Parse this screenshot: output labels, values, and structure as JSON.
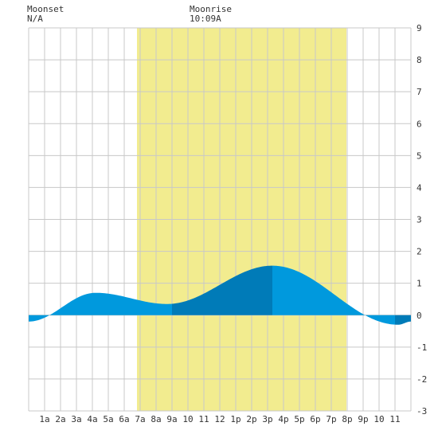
{
  "header": {
    "moonset_label": "Moonset",
    "moonset_value": "N/A",
    "moonrise_label": "Moonrise",
    "moonrise_value": "10:09A"
  },
  "colors": {
    "daylight": "#f2ec8f",
    "tide_light": "#0099dd",
    "tide_dark": "#007bb8",
    "grid": "#c8c8c8",
    "background": "#ffffff"
  },
  "chart_data": {
    "type": "area",
    "x_range": [
      0,
      24
    ],
    "ylim": [
      -3,
      9
    ],
    "grid": true,
    "x_tick_labels": [
      "1a",
      "2a",
      "3a",
      "4a",
      "5a",
      "6a",
      "7a",
      "8a",
      "9a",
      "10",
      "11",
      "12",
      "1p",
      "2p",
      "3p",
      "4p",
      "5p",
      "6p",
      "7p",
      "8p",
      "9p",
      "10",
      "11"
    ],
    "y_tick_labels": [
      "-3",
      "-2",
      "-1",
      "0",
      "1",
      "2",
      "3",
      "4",
      "5",
      "6",
      "7",
      "8",
      "9"
    ],
    "daylight": {
      "start_hour": 6.8,
      "end_hour": 19.95
    },
    "tide_extremes": [
      {
        "hour": 0.0,
        "height": -0.2
      },
      {
        "hour": 4.2,
        "height": 0.7
      },
      {
        "hour": 8.7,
        "height": 0.35
      },
      {
        "hour": 15.3,
        "height": 1.55
      },
      {
        "hour": 23.2,
        "height": -0.3
      },
      {
        "hour": 24.0,
        "height": -0.2
      }
    ],
    "tide_segments": [
      {
        "start_hour": 0.0,
        "end_hour": 4.3,
        "shade": "light"
      },
      {
        "start_hour": 4.3,
        "end_hour": 9.0,
        "shade": "light"
      },
      {
        "start_hour": 9.0,
        "end_hour": 15.3,
        "shade": "dark"
      },
      {
        "start_hour": 15.3,
        "end_hour": 23.0,
        "shade": "light"
      },
      {
        "start_hour": 23.0,
        "end_hour": 24.0,
        "shade": "dark"
      }
    ]
  }
}
